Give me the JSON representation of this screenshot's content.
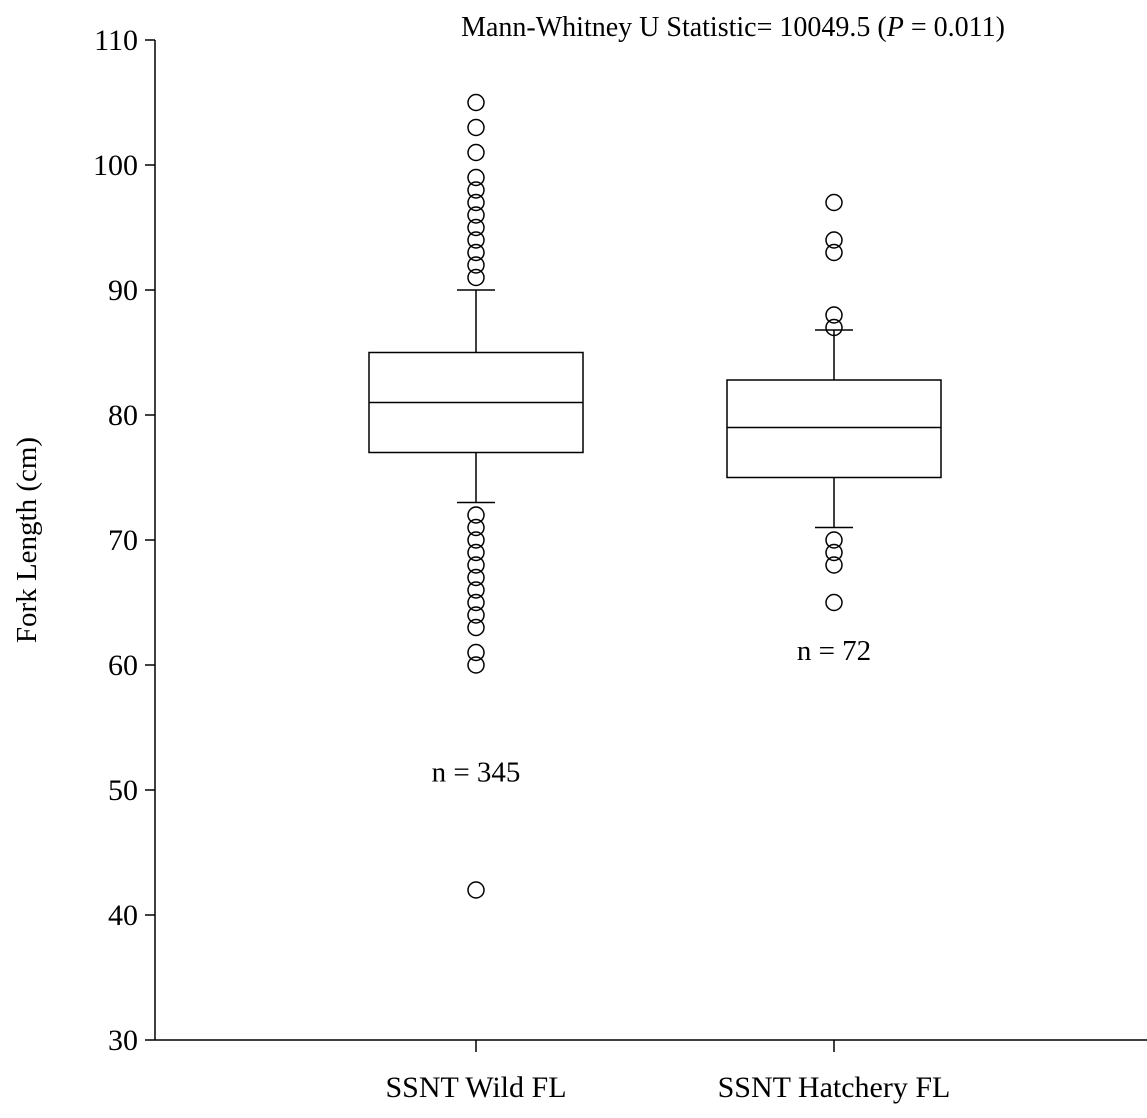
{
  "chart_data": {
    "type": "box",
    "title": {
      "prefix": "Mann-Whitney U Statistic= 10049.5 (",
      "p_symbol": "P",
      "suffix": " = 0.011)"
    },
    "ylabel": "Fork Length (cm)",
    "ylim": [
      30,
      110
    ],
    "yticks": [
      30,
      40,
      50,
      60,
      70,
      80,
      90,
      100,
      110
    ],
    "grid": false,
    "legend": "none",
    "series": [
      {
        "category": "SSNT Wild FL",
        "n_label": "n = 345",
        "n_label_y": 51.5,
        "whisker_low": 73,
        "q1": 77,
        "median": 81,
        "q3": 85,
        "whisker_high": 90,
        "outliers": [
          105,
          103,
          101,
          99,
          98,
          97,
          96,
          95,
          94,
          93,
          92,
          91,
          72,
          71,
          70,
          69,
          68,
          67,
          66,
          65,
          64,
          63,
          61,
          60,
          42
        ]
      },
      {
        "category": "SSNT Hatchery FL",
        "n_label": "n = 72",
        "n_label_y": 61.2,
        "whisker_low": 71,
        "q1": 75,
        "median": 79,
        "q3": 82.8,
        "whisker_high": 86.8,
        "outliers": [
          97,
          94,
          93,
          88,
          87,
          70,
          69,
          68,
          65
        ]
      }
    ]
  }
}
